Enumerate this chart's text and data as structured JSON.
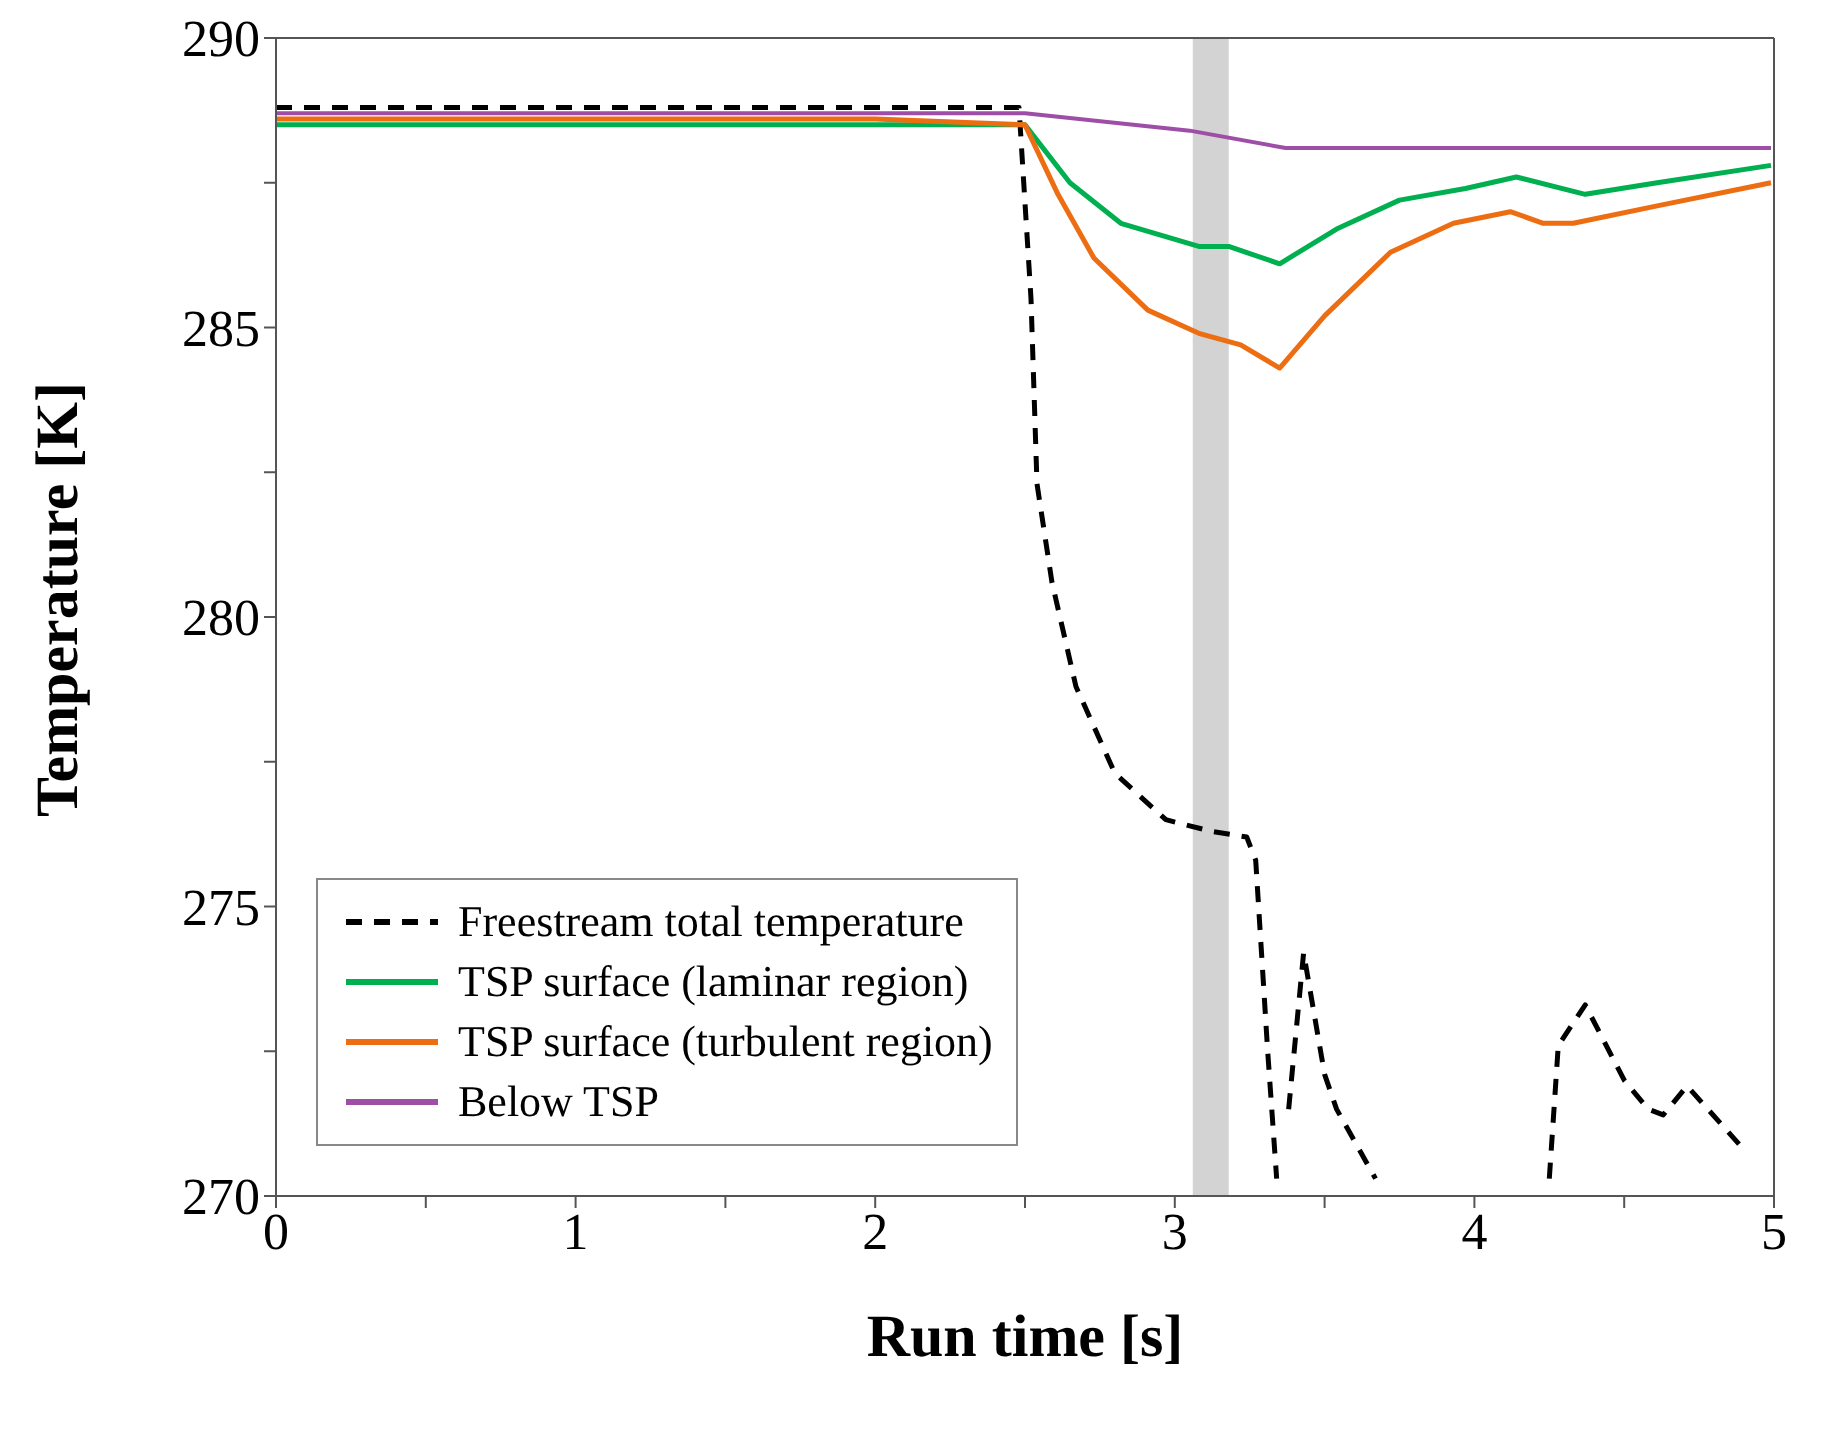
{
  "chart_data": {
    "type": "line",
    "xlabel": "Run time [s]",
    "ylabel": "Temperature [K]",
    "xlim": [
      0,
      5
    ],
    "ylim": [
      270,
      290
    ],
    "xticks": [
      0,
      {
        "value": 0.5,
        "label": null
      },
      1,
      {
        "value": 1.5,
        "label": null
      },
      2,
      {
        "value": 2.5,
        "label": null
      },
      3,
      {
        "value": 3.5,
        "label": null
      },
      4,
      {
        "value": 4.5,
        "label": null
      },
      5
    ],
    "yticks": [
      270,
      {
        "value": 272.5,
        "label": null
      },
      275,
      {
        "value": 277.5,
        "label": null
      },
      280,
      {
        "value": 282.5,
        "label": null
      },
      285,
      {
        "value": 287.5,
        "label": null
      },
      290
    ],
    "legend": "bottom left",
    "marker": "none",
    "bands": [
      {
        "axis": "x",
        "from": 3.06,
        "to": 3.18,
        "color": "#d3d3d3"
      }
    ],
    "series": [
      {
        "name": "Freestream total temperature",
        "color": "#000000",
        "line_style": "dashed",
        "x": [
          0,
          1,
          2,
          2.48,
          2.52,
          2.54,
          2.59,
          2.67,
          2.8,
          2.97,
          3.12,
          3.24,
          3.27,
          3.31,
          3.34,
          3.36,
          3.38,
          3.43,
          3.5,
          3.54,
          3.67,
          3.75,
          4.25,
          4.28,
          4.37,
          4.5,
          4.58,
          4.63,
          4.71,
          4.9
        ],
        "values": [
          288.8,
          288.8,
          288.8,
          288.8,
          285.5,
          282.3,
          280.6,
          278.8,
          277.3,
          276.5,
          276.3,
          276.2,
          275.8,
          272.5,
          270.3,
          null,
          271.5,
          274.2,
          272.1,
          271.5,
          270.3,
          null,
          270.3,
          272.6,
          273.3,
          272,
          271.5,
          271.4,
          271.9,
          270.8
        ]
      },
      {
        "name": "TSP surface (laminar region)",
        "color": "#00b050",
        "line_style": "solid",
        "x": [
          0,
          1,
          2,
          2.5,
          2.65,
          2.82,
          3.08,
          3.18,
          3.35,
          3.54,
          3.75,
          3.97,
          4.14,
          4.37,
          4.61,
          4.99
        ],
        "values": [
          288.5,
          288.5,
          288.5,
          288.5,
          287.5,
          286.8,
          286.4,
          286.4,
          286.1,
          286.7,
          287.2,
          287.4,
          287.6,
          287.3,
          287.5,
          287.8
        ]
      },
      {
        "name": "TSP surface (turbulent region)",
        "color": "#ed6d12",
        "line_style": "solid",
        "x": [
          0,
          1,
          2,
          2.5,
          2.61,
          2.73,
          2.91,
          3.08,
          3.22,
          3.35,
          3.5,
          3.72,
          3.93,
          4.12,
          4.23,
          4.33,
          4.61,
          4.99
        ],
        "values": [
          288.6,
          288.6,
          288.6,
          288.5,
          287.3,
          286.2,
          285.3,
          284.9,
          284.7,
          284.3,
          285.2,
          286.3,
          286.8,
          287,
          286.8,
          286.8,
          287.1,
          287.5
        ]
      },
      {
        "name": "Below TSP",
        "color": "#9e4ea6",
        "line_style": "solid",
        "x": [
          0,
          1,
          2,
          2.5,
          3.05,
          3.37,
          3.97,
          4.99
        ],
        "values": [
          288.7,
          288.7,
          288.7,
          288.7,
          288.4,
          288.1,
          288.1,
          288.1
        ]
      }
    ]
  }
}
